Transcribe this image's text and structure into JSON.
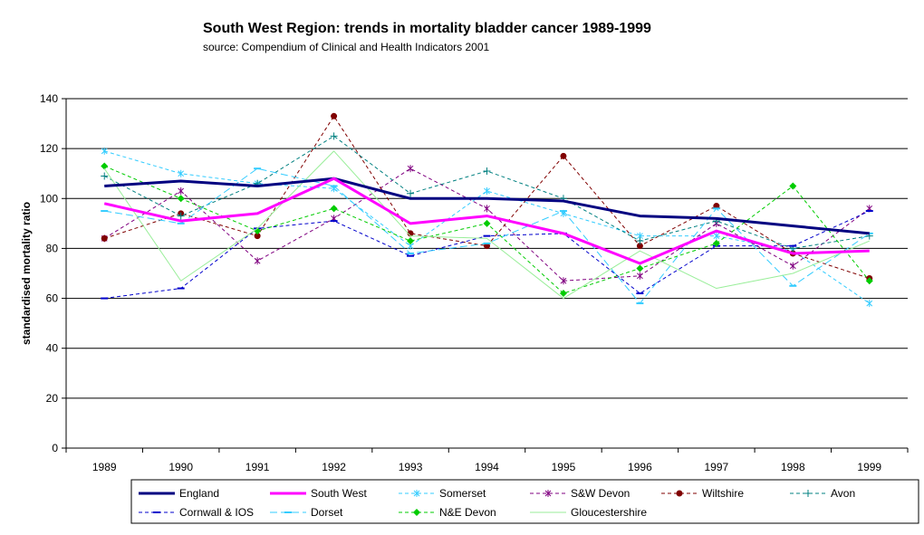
{
  "chart_data": {
    "type": "line",
    "title": "South West Region:  trends in mortality  bladder cancer 1989-1999",
    "subtitle": "source: Compendium of Clinical and Health Indicators  2001",
    "xlabel": "",
    "ylabel": "standardised mortality ratio",
    "ylim": [
      0,
      140
    ],
    "yticks": [
      "0",
      "20",
      "40",
      "60",
      "80",
      "100",
      "120",
      "140"
    ],
    "grid": "horizontal",
    "legend_position": "bottom",
    "categories": [
      "1989",
      "1990",
      "1991",
      "1992",
      "1993",
      "1994",
      "1995",
      "1996",
      "1997",
      "1998",
      "1999"
    ],
    "series": [
      {
        "name": "England",
        "color": "#000080",
        "style": "solid-thick",
        "marker": "none",
        "values": [
          105,
          107,
          105,
          108,
          100,
          100,
          99,
          93,
          92,
          89,
          86
        ]
      },
      {
        "name": "South West",
        "color": "#ff00ff",
        "style": "solid-thick",
        "marker": "none",
        "values": [
          98,
          91,
          94,
          108,
          90,
          93,
          86,
          74,
          87,
          78,
          79
        ]
      },
      {
        "name": "Somerset",
        "color": "#33ccff",
        "style": "dashed",
        "marker": "star",
        "values": [
          119,
          110,
          106,
          104,
          81,
          103,
          94,
          85,
          85,
          79,
          58
        ]
      },
      {
        "name": "S&W Devon",
        "color": "#800080",
        "style": "dashed",
        "marker": "star",
        "values": [
          84,
          103,
          75,
          92,
          112,
          96,
          67,
          69,
          90,
          73,
          96
        ]
      },
      {
        "name": "Wiltshire",
        "color": "#800000",
        "style": "dashed",
        "marker": "circle",
        "values": [
          84,
          94,
          85,
          133,
          86,
          81,
          117,
          81,
          97,
          78,
          68
        ]
      },
      {
        "name": "Avon",
        "color": "#008080",
        "style": "dashed",
        "marker": "plus",
        "values": [
          109,
          93,
          106,
          125,
          102,
          111,
          100,
          83,
          91,
          80,
          85
        ]
      },
      {
        "name": "Cornwall & IOS",
        "color": "#0000cc",
        "style": "dashed",
        "marker": "dash",
        "values": [
          60,
          64,
          88,
          91,
          77,
          85,
          86,
          62,
          81,
          81,
          95
        ]
      },
      {
        "name": "Dorset",
        "color": "#33ccff",
        "style": "longdash",
        "marker": "dash",
        "values": [
          95,
          90,
          112,
          105,
          78,
          82,
          95,
          58,
          96,
          65,
          86
        ]
      },
      {
        "name": "N&E Devon",
        "color": "#00cc00",
        "style": "dashed",
        "marker": "diamond",
        "values": [
          113,
          100,
          87,
          96,
          83,
          90,
          62,
          72,
          82,
          105,
          67
        ]
      },
      {
        "name": "Gloucestershire",
        "color": "#99ee99",
        "style": "solid-thin",
        "marker": "none",
        "values": [
          112,
          67,
          88,
          119,
          85,
          84,
          60,
          79,
          64,
          70,
          83
        ]
      }
    ]
  }
}
